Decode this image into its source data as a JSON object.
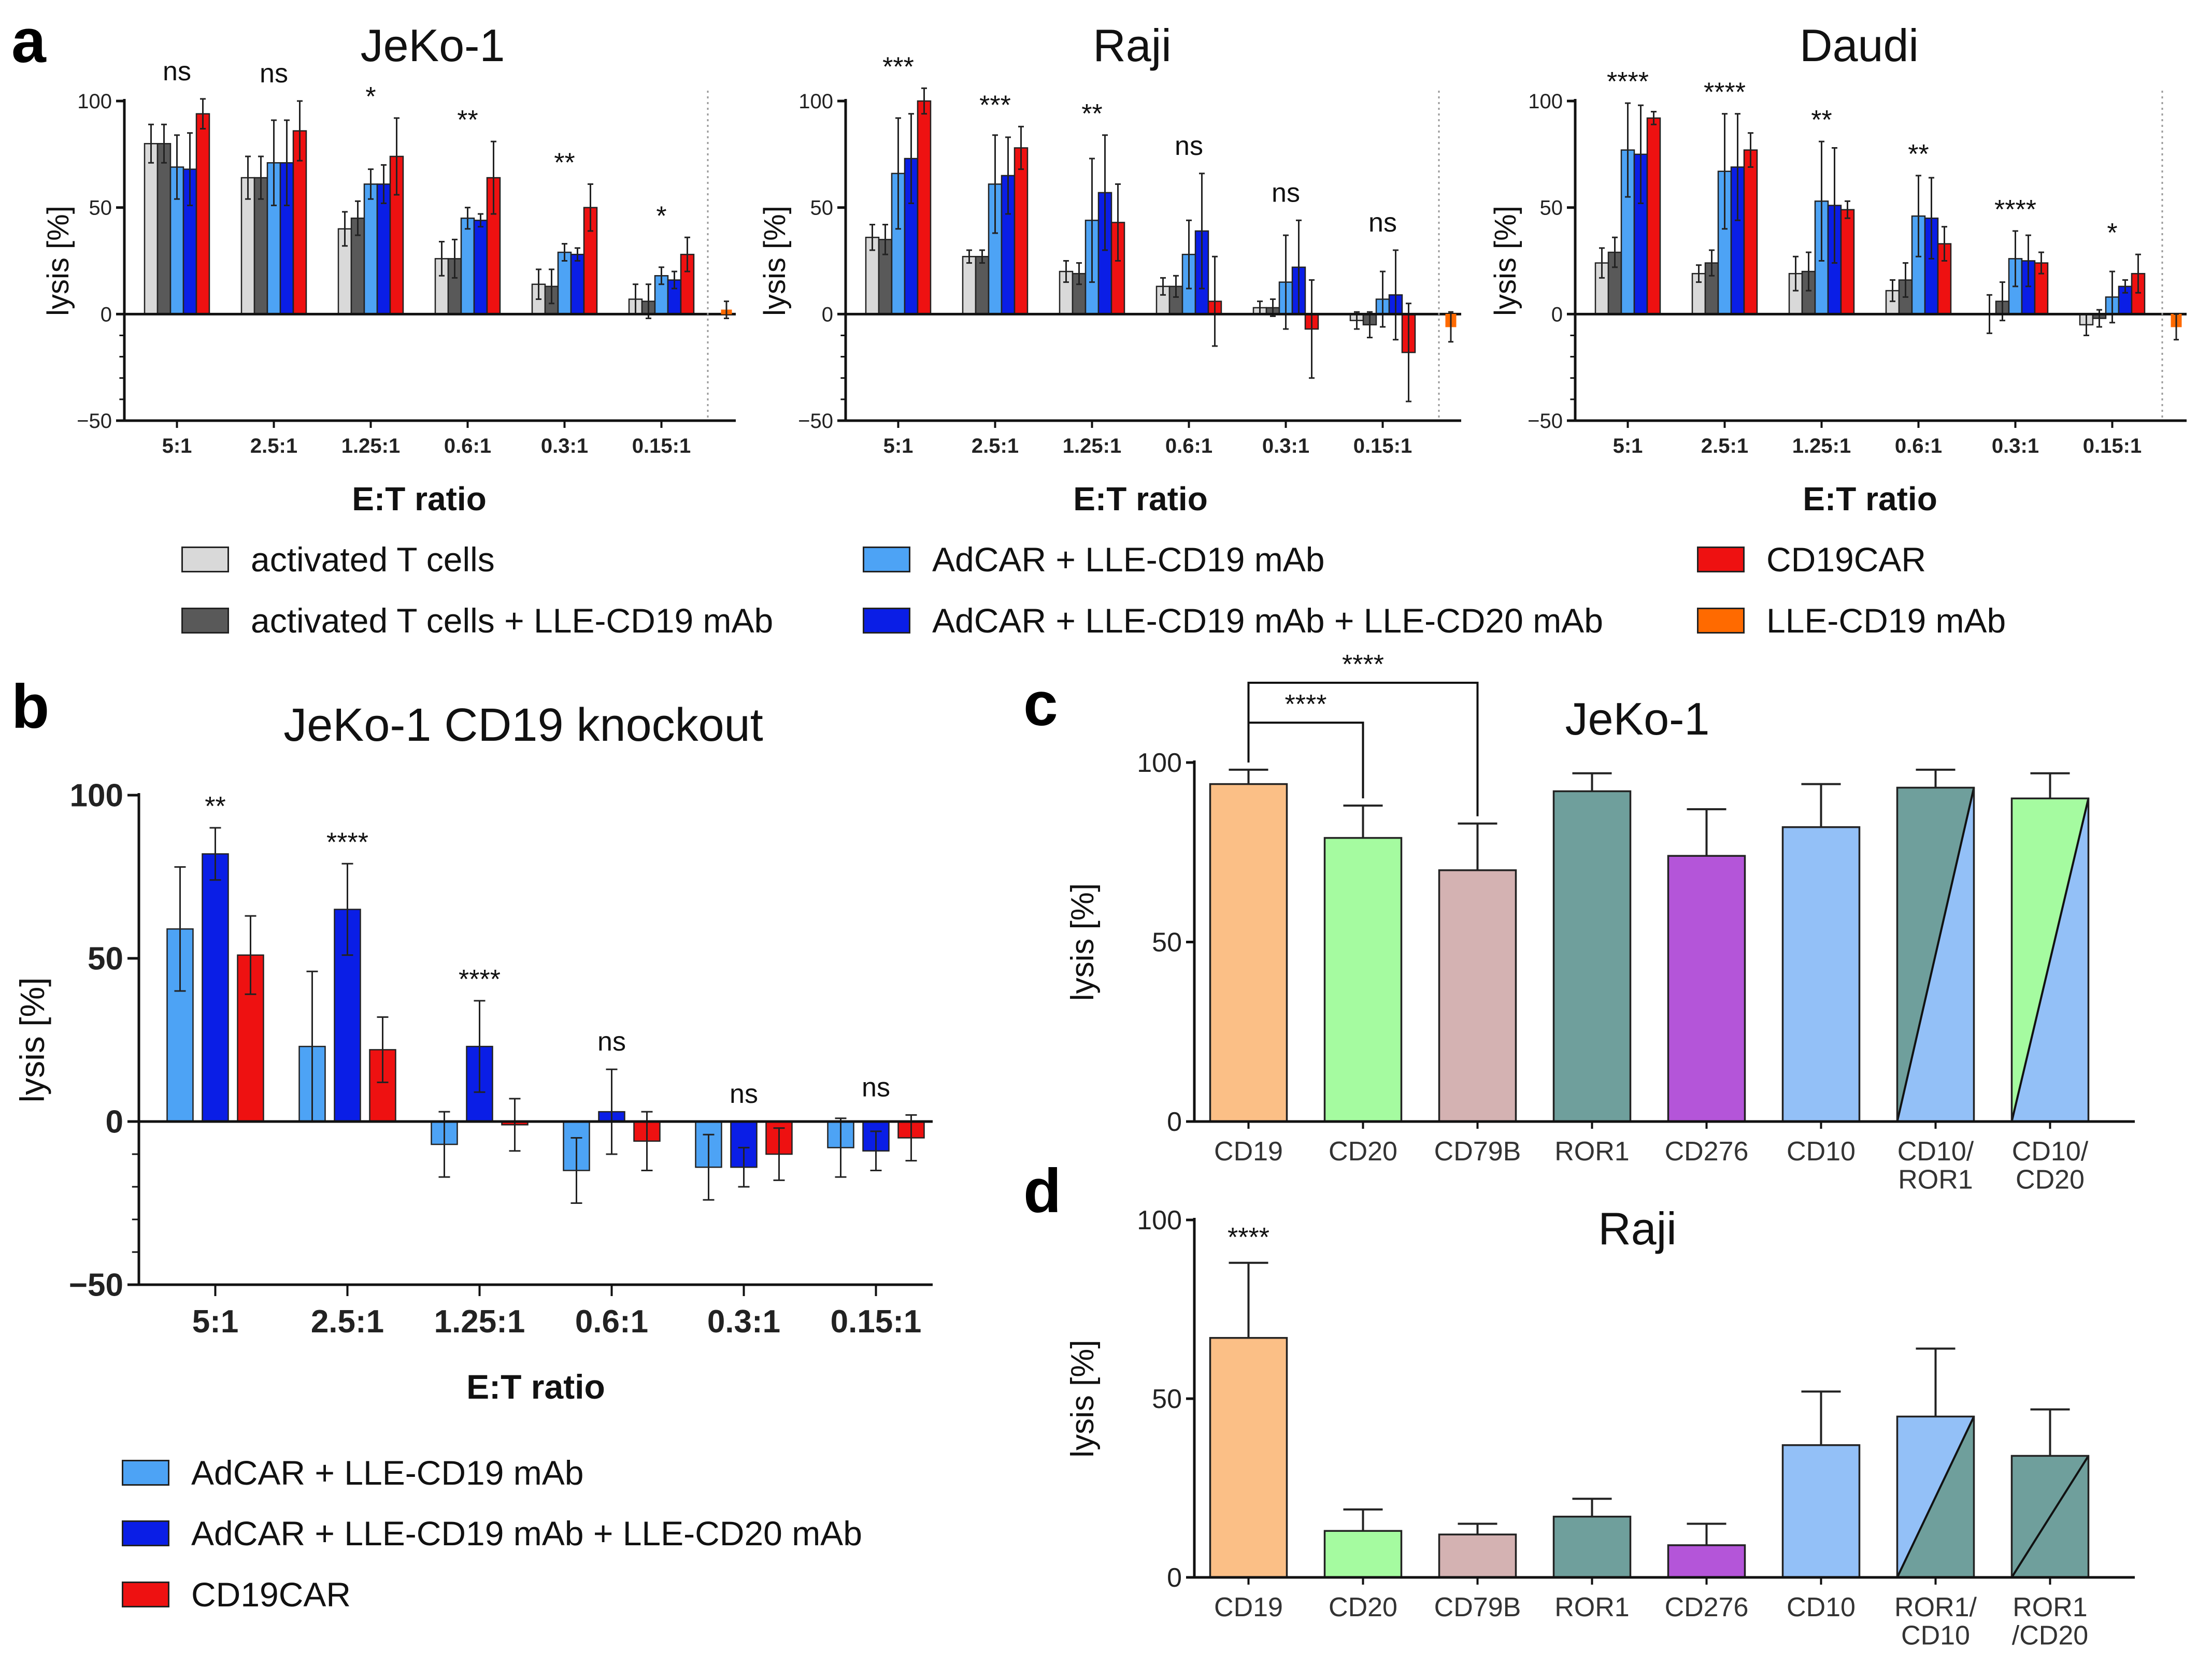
{
  "panel_letters": {
    "a": "a",
    "b": "b",
    "c": "c",
    "d": "d"
  },
  "colors": {
    "activated": "#d9d9d9",
    "activated_mab": "#595959",
    "adcar_19": "#4da3f5",
    "adcar_19_20": "#0a1ee6",
    "cd19car": "#ee1111",
    "lle_mab": "#ff6a00",
    "c_cd19": "#fbbf86",
    "c_cd20": "#a5fba0",
    "c_cd79b": "#d4b2b2",
    "c_ror1": "#6f9f9c",
    "c_cd276": "#b455d9",
    "c_cd10": "#93c0f7"
  },
  "legend_a": [
    {
      "label": "activated T cells",
      "color_key": "activated"
    },
    {
      "label": "activated T cells + LLE-CD19 mAb",
      "color_key": "activated_mab"
    },
    {
      "label": "AdCAR + LLE-CD19 mAb",
      "color_key": "adcar_19"
    },
    {
      "label": "AdCAR + LLE-CD19 mAb + LLE-CD20 mAb",
      "color_key": "adcar_19_20"
    },
    {
      "label": "CD19CAR",
      "color_key": "cd19car"
    },
    {
      "label": "LLE-CD19 mAb",
      "color_key": "lle_mab"
    }
  ],
  "legend_b": [
    {
      "label": "AdCAR + LLE-CD19 mAb",
      "color_key": "adcar_19"
    },
    {
      "label": "AdCAR + LLE-CD19 mAb + LLE-CD20 mAb",
      "color_key": "adcar_19_20"
    },
    {
      "label": "CD19CAR",
      "color_key": "cd19car"
    }
  ],
  "chart_data": [
    {
      "id": "a1",
      "type": "bar",
      "title": "JeKo-1",
      "xlabel": "E:T ratio",
      "ylabel": "lysis [%]",
      "ylim": [
        -50,
        100
      ],
      "yticks": [
        -50,
        0,
        50,
        100
      ],
      "ytick_labels": [
        "−50",
        "0",
        "50",
        "100"
      ],
      "categories": [
        "5:1",
        "2.5:1",
        "1.25:1",
        "0.6:1",
        "0.3:1",
        "0.15:1"
      ],
      "significance": [
        "ns",
        "ns",
        "*",
        "**",
        "**",
        "*"
      ],
      "series": [
        {
          "name": "activated T cells",
          "color_key": "activated",
          "values": [
            80,
            64,
            40,
            26,
            14,
            7
          ],
          "errors": [
            9,
            10,
            8,
            8,
            7,
            7
          ]
        },
        {
          "name": "activated T cells + LLE-CD19 mAb",
          "color_key": "activated_mab",
          "values": [
            80,
            64,
            45,
            26,
            13,
            6
          ],
          "errors": [
            9,
            10,
            8,
            9,
            8,
            8
          ]
        },
        {
          "name": "AdCAR + LLE-CD19 mAb",
          "color_key": "adcar_19",
          "values": [
            69,
            71,
            61,
            45,
            29,
            18
          ],
          "errors": [
            15,
            20,
            7,
            5,
            4,
            4
          ]
        },
        {
          "name": "AdCAR + LLE-CD19 mAb + LLE-CD20 mAb",
          "color_key": "adcar_19_20",
          "values": [
            68,
            71,
            61,
            44,
            28,
            16
          ],
          "errors": [
            17,
            20,
            9,
            3,
            3,
            4
          ]
        },
        {
          "name": "CD19CAR",
          "color_key": "cd19car",
          "values": [
            94,
            86,
            74,
            64,
            50,
            28
          ],
          "errors": [
            7,
            14,
            18,
            17,
            11,
            8
          ]
        }
      ],
      "extra_bar": {
        "name": "LLE-CD19 mAb",
        "color_key": "lle_mab",
        "value": 2,
        "error": 4
      }
    },
    {
      "id": "a2",
      "type": "bar",
      "title": "Raji",
      "xlabel": "E:T ratio",
      "ylabel": "lysis [%]",
      "ylim": [
        -50,
        100
      ],
      "yticks": [
        -50,
        0,
        50,
        100
      ],
      "ytick_labels": [
        "−50",
        "0",
        "50",
        "100"
      ],
      "categories": [
        "5:1",
        "2.5:1",
        "1.25:1",
        "0.6:1",
        "0.3:1",
        "0.15:1"
      ],
      "significance": [
        "***",
        "***",
        "**",
        "ns",
        "ns",
        "ns"
      ],
      "series": [
        {
          "name": "activated T cells",
          "color_key": "activated",
          "values": [
            36,
            27,
            20,
            13,
            3,
            -3
          ],
          "errors": [
            6,
            3,
            5,
            4,
            3,
            4
          ]
        },
        {
          "name": "activated T cells + LLE-CD19 mAb",
          "color_key": "activated_mab",
          "values": [
            35,
            27,
            19,
            13,
            3,
            -5
          ],
          "errors": [
            7,
            3,
            5,
            5,
            4,
            6
          ]
        },
        {
          "name": "AdCAR + LLE-CD19 mAb",
          "color_key": "adcar_19",
          "values": [
            66,
            61,
            44,
            28,
            15,
            7
          ],
          "errors": [
            26,
            23,
            29,
            16,
            22,
            13
          ]
        },
        {
          "name": "AdCAR + LLE-CD19 mAb + LLE-CD20 mAb",
          "color_key": "adcar_19_20",
          "values": [
            73,
            65,
            57,
            39,
            22,
            9
          ],
          "errors": [
            21,
            18,
            27,
            27,
            22,
            21
          ]
        },
        {
          "name": "CD19CAR",
          "color_key": "cd19car",
          "values": [
            100,
            78,
            43,
            6,
            -7,
            -18
          ],
          "errors": [
            6,
            10,
            18,
            21,
            23,
            23
          ]
        }
      ],
      "extra_bar": {
        "name": "LLE-CD19 mAb",
        "color_key": "lle_mab",
        "value": -6,
        "error": 7
      }
    },
    {
      "id": "a3",
      "type": "bar",
      "title": "Daudi",
      "xlabel": "E:T ratio",
      "ylabel": "lysis [%]",
      "ylim": [
        -50,
        100
      ],
      "yticks": [
        -50,
        0,
        50,
        100
      ],
      "ytick_labels": [
        "−50",
        "0",
        "50",
        "100"
      ],
      "categories": [
        "5:1",
        "2.5:1",
        "1.25:1",
        "0.6:1",
        "0.3:1",
        "0.15:1"
      ],
      "significance": [
        "****",
        "****",
        "**",
        "**",
        "****",
        "*"
      ],
      "series": [
        {
          "name": "activated T cells",
          "color_key": "activated",
          "values": [
            24,
            19,
            19,
            11,
            0,
            -5
          ],
          "errors": [
            7,
            4,
            8,
            5,
            9,
            5
          ]
        },
        {
          "name": "activated T cells + LLE-CD19 mAb",
          "color_key": "activated_mab",
          "values": [
            29,
            24,
            20,
            16,
            6,
            -2
          ],
          "errors": [
            7,
            6,
            9,
            8,
            9,
            4
          ]
        },
        {
          "name": "AdCAR + LLE-CD19 mAb",
          "color_key": "adcar_19",
          "values": [
            77,
            67,
            53,
            46,
            26,
            8
          ],
          "errors": [
            22,
            27,
            28,
            19,
            13,
            12
          ]
        },
        {
          "name": "AdCAR + LLE-CD19 mAb + LLE-CD20 mAb",
          "color_key": "adcar_19_20",
          "values": [
            75,
            69,
            51,
            45,
            25,
            13
          ],
          "errors": [
            23,
            25,
            27,
            19,
            12,
            3
          ]
        },
        {
          "name": "CD19CAR",
          "color_key": "cd19car",
          "values": [
            92,
            77,
            49,
            33,
            24,
            19
          ],
          "errors": [
            3,
            8,
            4,
            8,
            5,
            9
          ]
        }
      ],
      "extra_bar": {
        "name": "LLE-CD19 mAb",
        "color_key": "lle_mab",
        "value": -6,
        "error": 6
      }
    },
    {
      "id": "b",
      "type": "bar",
      "title": "JeKo-1 CD19 knockout",
      "xlabel": "E:T ratio",
      "ylabel": "lysis [%]",
      "ylim": [
        -50,
        100
      ],
      "yticks": [
        -50,
        0,
        50,
        100
      ],
      "ytick_labels": [
        "−50",
        "0",
        "50",
        "100"
      ],
      "categories": [
        "5:1",
        "2.5:1",
        "1.25:1",
        "0.6:1",
        "0.3:1",
        "0.15:1"
      ],
      "significance": [
        "**",
        "****",
        "****",
        "ns",
        "ns",
        "ns"
      ],
      "series": [
        {
          "name": "AdCAR + LLE-CD19 mAb",
          "color_key": "adcar_19",
          "values": [
            59,
            23,
            -7,
            -15,
            -14,
            -8
          ],
          "errors": [
            19,
            23,
            10,
            10,
            10,
            9
          ]
        },
        {
          "name": "AdCAR + LLE-CD19 mAb + LLE-CD20 mAb",
          "color_key": "adcar_19_20",
          "values": [
            82,
            65,
            23,
            3,
            -14,
            -9
          ],
          "errors": [
            8,
            14,
            14,
            13,
            6,
            6
          ]
        },
        {
          "name": "CD19CAR",
          "color_key": "cd19car",
          "values": [
            51,
            22,
            -1,
            -6,
            -10,
            -5
          ],
          "errors": [
            12,
            10,
            8,
            9,
            8,
            7
          ]
        }
      ]
    },
    {
      "id": "c",
      "type": "bar",
      "title": "JeKo-1",
      "xlabel": "",
      "ylabel": "lysis [%]",
      "ylim": [
        0,
        100
      ],
      "yticks": [
        0,
        50,
        100
      ],
      "ytick_labels": [
        "0",
        "50",
        "100"
      ],
      "categories": [
        "CD19",
        "CD20",
        "CD79B",
        "ROR1",
        "CD276",
        "CD10",
        "CD10/\nROR1",
        "CD10/\nCD20"
      ],
      "values": [
        94,
        79,
        70,
        92,
        74,
        82,
        93,
        90
      ],
      "errors": [
        4,
        9,
        13,
        5,
        13,
        12,
        5,
        7
      ],
      "color_keys": [
        [
          "c_cd19"
        ],
        [
          "c_cd20"
        ],
        [
          "c_cd79b"
        ],
        [
          "c_ror1"
        ],
        [
          "c_cd276"
        ],
        [
          "c_cd10"
        ],
        [
          "c_ror1",
          "c_cd10"
        ],
        [
          "c_cd20",
          "c_cd10"
        ]
      ],
      "brackets": [
        {
          "from": "CD19",
          "to": "CD20",
          "label": "****"
        },
        {
          "from": "CD19",
          "to": "CD79B",
          "label": "****"
        }
      ]
    },
    {
      "id": "d",
      "type": "bar",
      "title": "Raji",
      "xlabel": "",
      "ylabel": "lysis [%]",
      "ylim": [
        0,
        100
      ],
      "yticks": [
        0,
        50,
        100
      ],
      "ytick_labels": [
        "0",
        "50",
        "100"
      ],
      "categories": [
        "CD19",
        "CD20",
        "CD79B",
        "ROR1",
        "CD276",
        "CD10",
        "ROR1/\nCD10",
        "ROR1\n/CD20"
      ],
      "values": [
        67,
        13,
        12,
        17,
        9,
        37,
        45,
        34
      ],
      "errors": [
        21,
        6,
        3,
        5,
        6,
        15,
        19,
        13
      ],
      "color_keys": [
        [
          "c_cd19"
        ],
        [
          "c_cd20"
        ],
        [
          "c_cd79b"
        ],
        [
          "c_ror1"
        ],
        [
          "c_cd276"
        ],
        [
          "c_cd10"
        ],
        [
          "c_cd10",
          "c_ror1"
        ],
        [
          "c_ror1",
          "c_ror1"
        ]
      ],
      "significance": [
        "****",
        "",
        "",
        "",
        "",
        "",
        "",
        ""
      ]
    }
  ]
}
